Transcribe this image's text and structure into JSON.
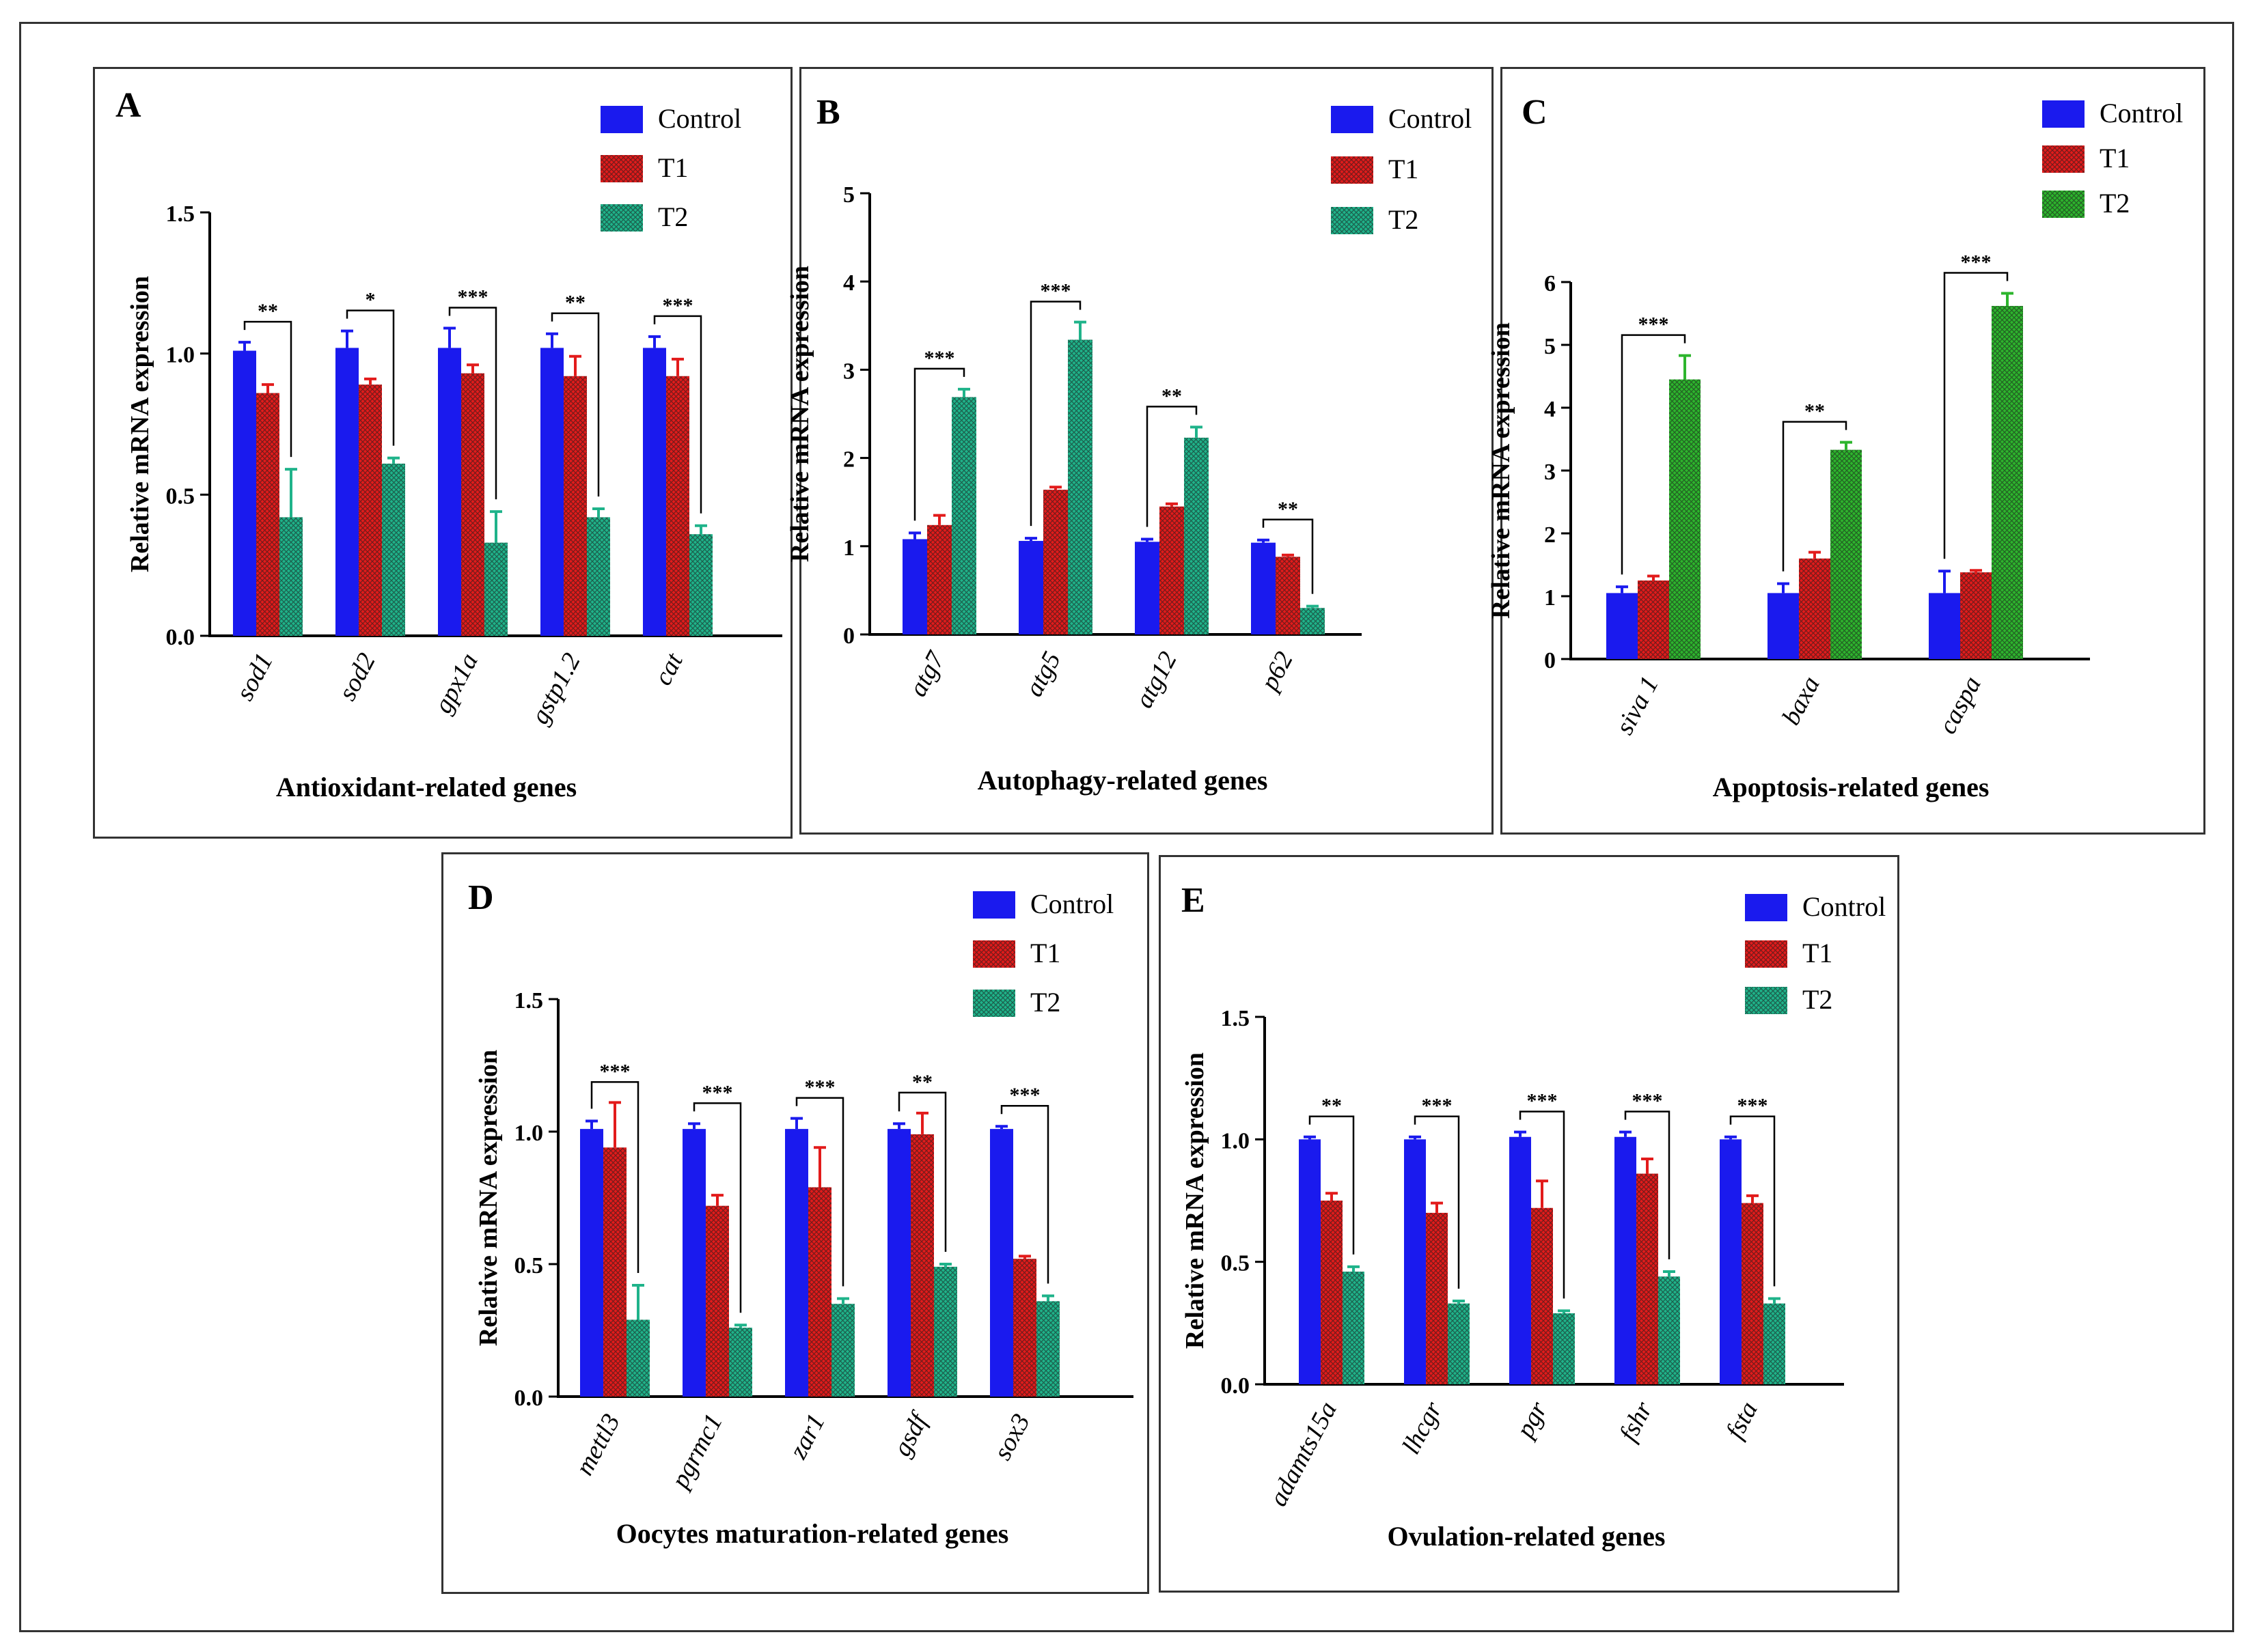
{
  "colors": {
    "control": "#1a1aee",
    "t1": "#e21b1b",
    "t2": "#1fb38a",
    "t2_panel_c": "#2db52d",
    "axis": "#000000"
  },
  "legend": [
    "Control",
    "T1",
    "T2"
  ],
  "chart_data": [
    {
      "type": "bar",
      "panel": "A",
      "title": "Antioxidant-related genes",
      "xlabel": "Antioxidant-related genes",
      "ylabel": "Relative mRNA expression",
      "ylim": [
        0,
        1.5
      ],
      "yticks": [
        0.0,
        0.5,
        1.0,
        1.5
      ],
      "ytick_labels": [
        "0.0",
        "0.5",
        "1.0",
        "1.5"
      ],
      "categories": [
        "sod1",
        "sod2",
        "gpx1a",
        "gstp1.2",
        "cat"
      ],
      "series": [
        {
          "name": "Control",
          "values": [
            1.01,
            1.02,
            1.02,
            1.02,
            1.02
          ],
          "errors": [
            0.03,
            0.06,
            0.07,
            0.05,
            0.04
          ]
        },
        {
          "name": "T1",
          "values": [
            0.86,
            0.89,
            0.93,
            0.92,
            0.92
          ],
          "errors": [
            0.03,
            0.02,
            0.03,
            0.07,
            0.06
          ]
        },
        {
          "name": "T2",
          "values": [
            0.42,
            0.61,
            0.33,
            0.42,
            0.36
          ],
          "errors": [
            0.17,
            0.02,
            0.11,
            0.03,
            0.03
          ]
        }
      ],
      "significance": [
        "**",
        "*",
        "***",
        "**",
        "***"
      ]
    },
    {
      "type": "bar",
      "panel": "B",
      "title": "Autophagy-related genes",
      "xlabel": "Autophagy-related genes",
      "ylabel": "Relative mRNA expression",
      "ylim": [
        0,
        5
      ],
      "yticks": [
        0,
        1,
        2,
        3,
        4,
        5
      ],
      "ytick_labels": [
        "0",
        "1",
        "2",
        "3",
        "4",
        "5"
      ],
      "categories": [
        "atg7",
        "atg5",
        "atg12",
        "p62"
      ],
      "series": [
        {
          "name": "Control",
          "values": [
            1.08,
            1.06,
            1.05,
            1.04
          ],
          "errors": [
            0.07,
            0.03,
            0.03,
            0.03
          ]
        },
        {
          "name": "T1",
          "values": [
            1.24,
            1.64,
            1.45,
            0.88
          ],
          "errors": [
            0.11,
            0.03,
            0.03,
            0.02
          ]
        },
        {
          "name": "T2",
          "values": [
            2.69,
            3.34,
            2.23,
            0.3
          ],
          "errors": [
            0.09,
            0.2,
            0.12,
            0.02
          ]
        }
      ],
      "significance": [
        "***",
        "***",
        "**",
        "**"
      ]
    },
    {
      "type": "bar",
      "panel": "C",
      "title": "Apoptosis-related genes",
      "xlabel": "Apoptosis-related genes",
      "ylabel": "Relative mRNA expression",
      "ylim": [
        0,
        6
      ],
      "yticks": [
        0,
        1,
        2,
        3,
        4,
        5,
        6
      ],
      "ytick_labels": [
        "0",
        "1",
        "2",
        "3",
        "4",
        "5",
        "6"
      ],
      "categories": [
        "siva 1",
        "baxa",
        "caspa"
      ],
      "series": [
        {
          "name": "Control",
          "values": [
            1.05,
            1.05,
            1.05
          ],
          "errors": [
            0.1,
            0.15,
            0.35
          ]
        },
        {
          "name": "T1",
          "values": [
            1.25,
            1.6,
            1.38
          ],
          "errors": [
            0.07,
            0.1,
            0.03
          ]
        },
        {
          "name": "T2",
          "values": [
            4.45,
            3.33,
            5.62
          ],
          "errors": [
            0.38,
            0.12,
            0.2
          ]
        }
      ],
      "significance": [
        "***",
        "**",
        "***"
      ]
    },
    {
      "type": "bar",
      "panel": "D",
      "title": "Oocytes maturation-related genes",
      "xlabel": "Oocytes maturation-related genes",
      "ylabel": "Relative mRNA expression",
      "ylim": [
        0,
        1.5
      ],
      "yticks": [
        0.0,
        0.5,
        1.0,
        1.5
      ],
      "ytick_labels": [
        "0.0",
        "0.5",
        "1.0",
        "1.5"
      ],
      "categories": [
        "mettl3",
        "pgrmc1",
        "zar1",
        "gsdf",
        "sox3"
      ],
      "series": [
        {
          "name": "Control",
          "values": [
            1.01,
            1.01,
            1.01,
            1.01,
            1.01
          ],
          "errors": [
            0.03,
            0.02,
            0.04,
            0.02,
            0.01
          ]
        },
        {
          "name": "T1",
          "values": [
            0.94,
            0.72,
            0.79,
            0.99,
            0.52
          ],
          "errors": [
            0.17,
            0.04,
            0.15,
            0.08,
            0.01
          ]
        },
        {
          "name": "T2",
          "values": [
            0.29,
            0.26,
            0.35,
            0.49,
            0.36
          ],
          "errors": [
            0.13,
            0.01,
            0.02,
            0.01,
            0.02
          ]
        }
      ],
      "significance": [
        "***",
        "***",
        "***",
        "**",
        "***"
      ]
    },
    {
      "type": "bar",
      "panel": "E",
      "title": "Ovulation-related genes",
      "xlabel": "Ovulation-related genes",
      "ylabel": "Relative mRNA expression",
      "ylim": [
        0,
        1.5
      ],
      "yticks": [
        0.0,
        0.5,
        1.0,
        1.5
      ],
      "ytick_labels": [
        "0.0",
        "0.5",
        "1.0",
        "1.5"
      ],
      "categories": [
        "adamts15a",
        "lhcgr",
        "pgr",
        "fshr",
        "fsta"
      ],
      "series": [
        {
          "name": "Control",
          "values": [
            1.0,
            1.0,
            1.01,
            1.01,
            1.0
          ],
          "errors": [
            0.01,
            0.01,
            0.02,
            0.02,
            0.01
          ]
        },
        {
          "name": "T1",
          "values": [
            0.75,
            0.7,
            0.72,
            0.86,
            0.74
          ],
          "errors": [
            0.03,
            0.04,
            0.11,
            0.06,
            0.03
          ]
        },
        {
          "name": "T2",
          "values": [
            0.46,
            0.33,
            0.29,
            0.44,
            0.33
          ],
          "errors": [
            0.02,
            0.01,
            0.01,
            0.02,
            0.02
          ]
        }
      ],
      "significance": [
        "**",
        "***",
        "***",
        "***",
        "***"
      ]
    }
  ]
}
